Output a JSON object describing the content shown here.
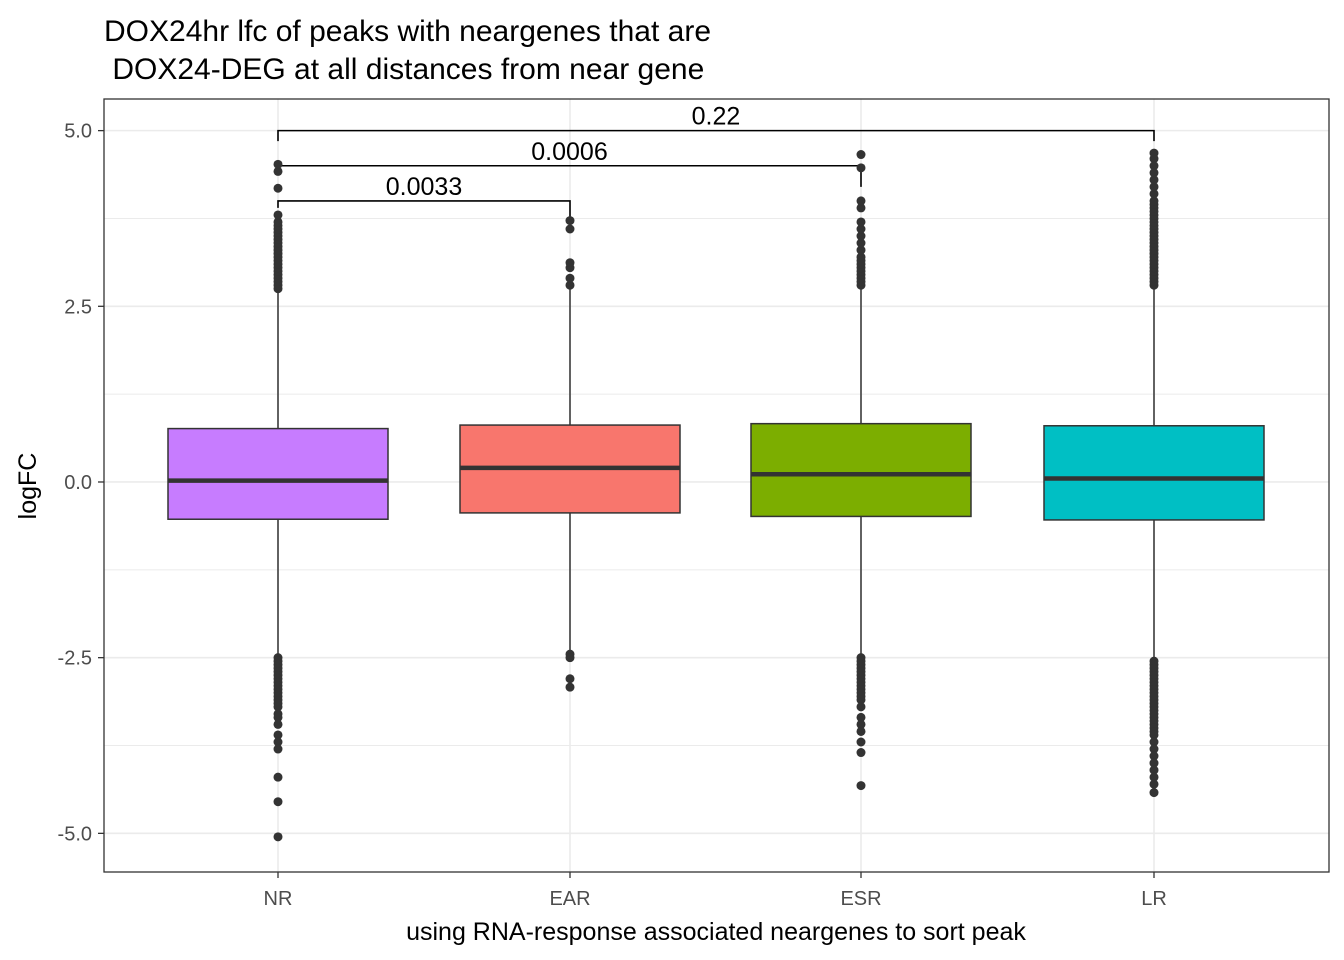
{
  "chart_data": {
    "type": "box",
    "title_lines": [
      "DOX24hr lfc of peaks with neargenes that are",
      " DOX24-DEG at all distances from near gene"
    ],
    "xlabel": "using RNA-response associated neargenes to sort peak",
    "ylabel": "logFC",
    "ylim": [
      -5.55,
      5.45
    ],
    "y_ticks": [
      -5.0,
      -2.5,
      0.0,
      2.5,
      5.0
    ],
    "y_tick_labels": [
      "-5.0",
      "-2.5",
      "0.0",
      "2.5",
      "5.0"
    ],
    "y_minor_ticks": [
      -3.75,
      -1.25,
      1.25,
      3.75
    ],
    "grid": true,
    "legend": "none",
    "categories": [
      "NR",
      "EAR",
      "ESR",
      "LR"
    ],
    "boxes": [
      {
        "category": "NR",
        "color": "#C77CFF",
        "q1": -0.53,
        "median": 0.02,
        "q3": 0.76,
        "whisker_low": -2.45,
        "whisker_high": 2.7,
        "outliers": [
          2.75,
          2.8,
          2.85,
          2.9,
          2.95,
          3.0,
          3.05,
          3.1,
          3.15,
          3.2,
          3.25,
          3.3,
          3.35,
          3.4,
          3.45,
          3.5,
          3.55,
          3.6,
          3.65,
          3.7,
          3.8,
          4.18,
          4.42,
          4.52,
          -2.5,
          -2.55,
          -2.6,
          -2.65,
          -2.7,
          -2.75,
          -2.8,
          -2.85,
          -2.9,
          -2.95,
          -3.0,
          -3.05,
          -3.1,
          -3.15,
          -3.2,
          -3.3,
          -3.35,
          -3.45,
          -3.6,
          -3.7,
          -3.8,
          -4.2,
          -4.55,
          -5.05
        ]
      },
      {
        "category": "EAR",
        "color": "#F8766D",
        "q1": -0.44,
        "median": 0.2,
        "q3": 0.81,
        "whisker_low": -2.4,
        "whisker_high": 2.75,
        "outliers": [
          2.8,
          2.9,
          3.05,
          3.12,
          3.6,
          3.72,
          -2.45,
          -2.5,
          -2.8,
          -2.92
        ]
      },
      {
        "category": "ESR",
        "color": "#7CAE00",
        "q1": -0.49,
        "median": 0.11,
        "q3": 0.83,
        "whisker_low": -2.45,
        "whisker_high": 2.75,
        "outliers": [
          2.8,
          2.85,
          2.9,
          2.95,
          3.0,
          3.05,
          3.1,
          3.15,
          3.2,
          3.3,
          3.4,
          3.5,
          3.6,
          3.7,
          3.9,
          4.0,
          4.47,
          4.66,
          -2.5,
          -2.55,
          -2.6,
          -2.65,
          -2.7,
          -2.75,
          -2.8,
          -2.85,
          -2.9,
          -2.95,
          -3.0,
          -3.05,
          -3.1,
          -3.2,
          -3.35,
          -3.45,
          -3.55,
          -3.7,
          -3.85,
          -4.32
        ]
      },
      {
        "category": "LR",
        "color": "#00BFC4",
        "q1": -0.54,
        "median": 0.05,
        "q3": 0.8,
        "whisker_low": -2.5,
        "whisker_high": 2.75,
        "outliers": [
          2.8,
          2.85,
          2.9,
          2.95,
          3.0,
          3.05,
          3.1,
          3.15,
          3.2,
          3.25,
          3.3,
          3.35,
          3.4,
          3.45,
          3.5,
          3.55,
          3.6,
          3.65,
          3.7,
          3.75,
          3.8,
          3.85,
          3.9,
          3.95,
          4.0,
          4.1,
          4.2,
          4.3,
          4.4,
          4.5,
          4.6,
          4.68,
          -2.55,
          -2.6,
          -2.65,
          -2.7,
          -2.75,
          -2.8,
          -2.85,
          -2.9,
          -2.95,
          -3.0,
          -3.05,
          -3.1,
          -3.15,
          -3.2,
          -3.25,
          -3.3,
          -3.35,
          -3.4,
          -3.45,
          -3.5,
          -3.55,
          -3.6,
          -3.7,
          -3.8,
          -3.9,
          -4.0,
          -4.1,
          -4.2,
          -4.3,
          -4.42
        ]
      }
    ],
    "significance": [
      {
        "from": "NR",
        "to": "LR",
        "y": 5.0,
        "label": "0.22",
        "left_drop": 4.85,
        "right_drop": 4.85
      },
      {
        "from": "NR",
        "to": "ESR",
        "y": 4.5,
        "label": "0.0006",
        "left_drop": 4.4,
        "right_drop": 4.2
      },
      {
        "from": "NR",
        "to": "EAR",
        "y": 4.0,
        "label": "0.0033",
        "left_drop": 3.9,
        "right_drop": 3.75
      }
    ]
  }
}
